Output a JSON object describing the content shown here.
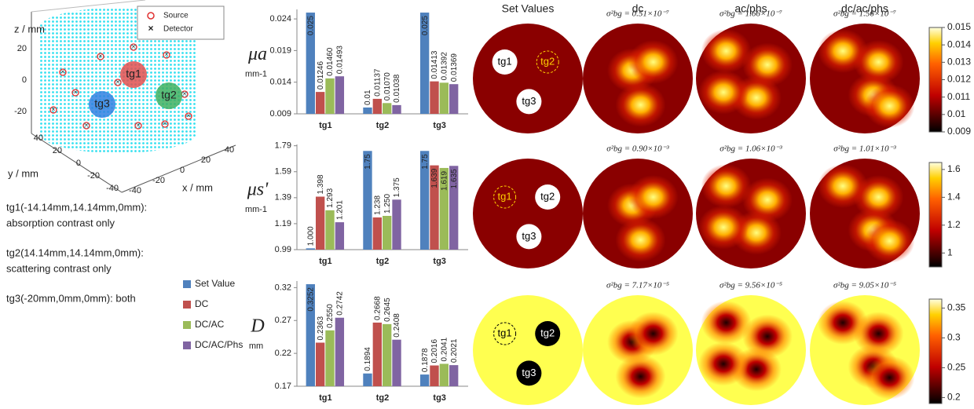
{
  "plot3d": {
    "zlabel": "z / mm",
    "ylabel": "y / mm",
    "xlabel": "x / mm",
    "zticks": [
      20,
      0,
      -20
    ],
    "yticks": [
      40,
      20,
      0,
      -20,
      -40
    ],
    "xticks": [
      -40,
      -20,
      0,
      20,
      40
    ],
    "legend": [
      "Source",
      "Detector"
    ],
    "targets": [
      "tg1",
      "tg2",
      "tg3"
    ]
  },
  "notes": [
    [
      "tg1(-14.14mm,14.14mm,0mm):",
      "absorption contrast only"
    ],
    [
      "tg2(14.14mm,14.14mm,0mm):",
      "scattering contrast only"
    ],
    [
      "tg3(-20mm,0mm,0mm): both"
    ]
  ],
  "chart_data": [
    {
      "type": "bar",
      "ylabel": "μa",
      "yunit": "mm-1",
      "categories": [
        "tg1",
        "tg2",
        "tg3"
      ],
      "ylim": [
        0.009,
        0.0255
      ],
      "yticks": [
        0.009,
        0.014,
        0.019,
        0.024
      ],
      "series": [
        {
          "name": "Set Value",
          "color": "#4f81bd",
          "values": [
            0.025,
            0.01,
            0.025
          ],
          "value_labels": [
            "0.025",
            "0.01",
            "0.025"
          ]
        },
        {
          "name": "DC",
          "color": "#c0504d",
          "values": [
            0.01246,
            0.01137,
            0.01413
          ],
          "value_labels": [
            "0.01246",
            "0.01137",
            "0.01413"
          ]
        },
        {
          "name": "DC/AC",
          "color": "#9bbb59",
          "values": [
            0.0146,
            0.0107,
            0.01392
          ],
          "value_labels": [
            "0.01460",
            "0.01070",
            "0.01392"
          ]
        },
        {
          "name": "DC/AC/Phs",
          "color": "#8064a2",
          "values": [
            0.01493,
            0.01038,
            0.01369
          ],
          "value_labels": [
            "0.01493",
            "0.01038",
            "0.01369"
          ]
        }
      ]
    },
    {
      "type": "bar",
      "ylabel": "μs'",
      "yunit": "mm-1",
      "categories": [
        "tg1",
        "tg2",
        "tg3"
      ],
      "ylim": [
        0.99,
        1.8
      ],
      "yticks": [
        0.99,
        1.19,
        1.39,
        1.59,
        1.79
      ],
      "series": [
        {
          "color": "#4f81bd",
          "values": [
            1.0,
            1.75,
            1.75
          ],
          "value_labels": [
            "1.000",
            "1.75",
            "1.75"
          ]
        },
        {
          "color": "#c0504d",
          "values": [
            1.398,
            1.238,
            1.639
          ],
          "value_labels": [
            "1.398",
            "1.238",
            "1.639"
          ]
        },
        {
          "color": "#9bbb59",
          "values": [
            1.293,
            1.25,
            1.619
          ],
          "value_labels": [
            "1.293",
            "1.250",
            "1.619"
          ]
        },
        {
          "color": "#8064a2",
          "values": [
            1.201,
            1.375,
            1.635
          ],
          "value_labels": [
            "1.201",
            "1.375",
            "1.635"
          ]
        }
      ]
    },
    {
      "type": "bar",
      "ylabel": "D",
      "yunit": "mm",
      "categories": [
        "tg1",
        "tg2",
        "tg3"
      ],
      "ylim": [
        0.17,
        0.33
      ],
      "yticks": [
        0.17,
        0.22,
        0.27,
        0.32
      ],
      "series": [
        {
          "color": "#4f81bd",
          "values": [
            0.3252,
            0.1894,
            0.1878
          ],
          "value_labels": [
            "0.3252",
            "0.1894",
            "0.1878"
          ]
        },
        {
          "color": "#c0504d",
          "values": [
            0.2363,
            0.2668,
            0.2016
          ],
          "value_labels": [
            "0.2363",
            "0.2668",
            "0.2016"
          ]
        },
        {
          "color": "#9bbb59",
          "values": [
            0.255,
            0.2645,
            0.2041
          ],
          "value_labels": [
            "0.2550",
            "0.2645",
            "0.2041"
          ]
        },
        {
          "color": "#8064a2",
          "values": [
            0.2742,
            0.2408,
            0.2021
          ],
          "value_labels": [
            "0.2742",
            "0.2408",
            "0.2021"
          ]
        }
      ]
    }
  ],
  "maps": {
    "columns": [
      "Set Values",
      "dc",
      "ac/phs",
      "dc/ac/phs"
    ],
    "rows": [
      {
        "sigma": [
          "σ²bg = 0.51×10⁻⁷",
          "σ²bg = 1.66×10⁻⁷",
          "σ²bg = 1.56×10⁻⁷"
        ],
        "targets": [
          "tg1",
          "tg2",
          "tg3"
        ]
      },
      {
        "sigma": [
          "σ²bg = 0.90×10⁻³",
          "σ²bg = 1.06×10⁻³",
          "σ²bg = 1.01×10⁻³"
        ],
        "targets": [
          "tg1",
          "tg2",
          "tg3"
        ]
      },
      {
        "sigma": [
          "σ²bg = 7.17×10⁻⁵",
          "σ²bg = 9.56×10⁻⁵",
          "σ²bg = 9.05×10⁻⁵"
        ],
        "targets": [
          "tg1",
          "tg2",
          "tg3"
        ]
      }
    ]
  },
  "colorbars": [
    {
      "lim": [
        0.009,
        0.015
      ],
      "ticks": [
        0.015,
        0.014,
        0.013,
        0.012,
        0.011,
        0.01,
        0.009
      ]
    },
    {
      "lim": [
        0.9,
        1.65
      ],
      "ticks": [
        1.6,
        1.4,
        1.2,
        1
      ]
    },
    {
      "lim": [
        0.19,
        0.365
      ],
      "ticks": [
        0.35,
        0.3,
        0.25,
        0.2
      ]
    }
  ]
}
